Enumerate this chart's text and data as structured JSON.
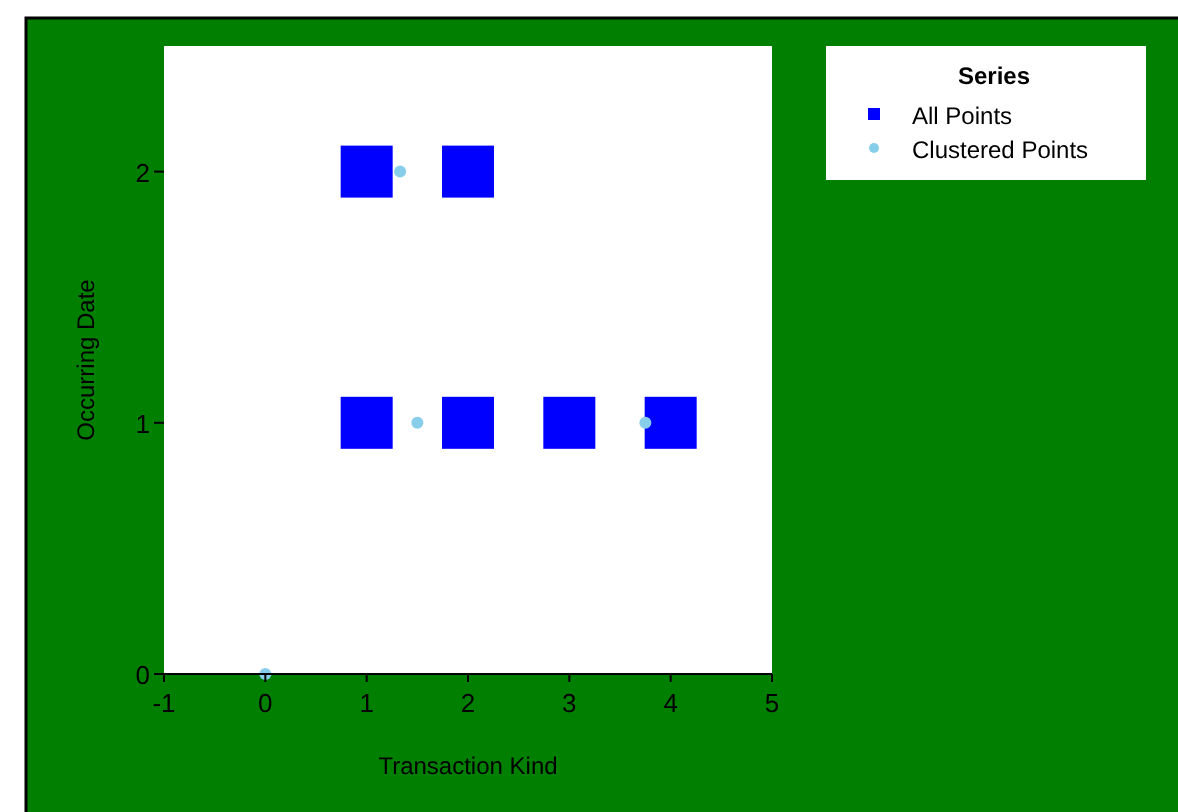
{
  "chart_data": {
    "type": "scatter",
    "xlabel": "Transaction Kind",
    "ylabel": "Occurring Date",
    "legend_title": "Series",
    "xlim": [
      -1,
      5
    ],
    "xticks": [
      -1,
      0,
      1,
      2,
      3,
      4,
      5
    ],
    "ylim": [
      0,
      2.5
    ],
    "yticks": [
      0,
      1,
      2
    ],
    "grid": false,
    "legend": "top right",
    "series": [
      {
        "name": "All Points",
        "color": "#0000ff",
        "marker": "square",
        "x": [
          1,
          2,
          1,
          2,
          3,
          4
        ],
        "values": [
          2,
          2,
          1,
          1,
          1,
          1
        ]
      },
      {
        "name": "Clustered Points",
        "color": "#87ceeb",
        "marker": "circle",
        "x": [
          1.33,
          1.5,
          3.75,
          0
        ],
        "values": [
          2,
          1,
          1,
          0
        ]
      }
    ]
  }
}
